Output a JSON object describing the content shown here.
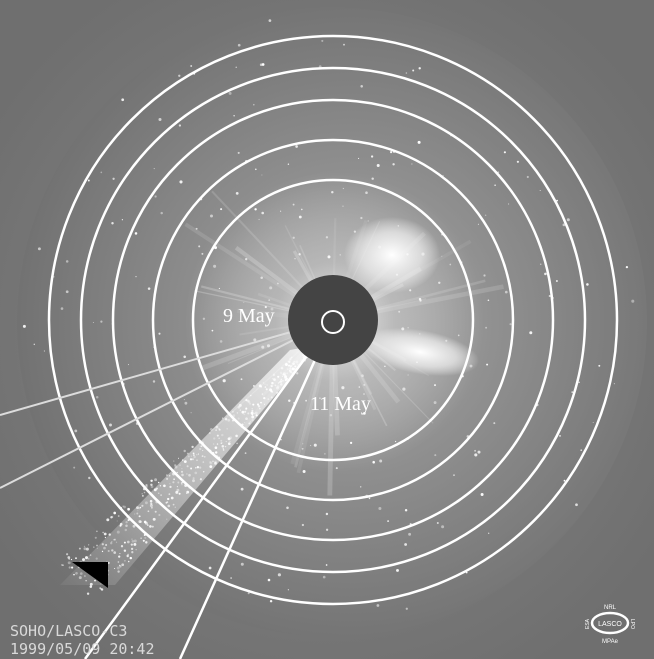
{
  "image": {
    "labels": {
      "date_a": "9 May",
      "date_b": "11 May"
    },
    "caption": {
      "line1": "SOHO/LASCO-C3",
      "line2": "1999/05/09 20:42"
    },
    "logo": {
      "top": "NRL",
      "center": "LASCO",
      "bottom": "MPAe",
      "left": "ESA",
      "right": "LPO"
    },
    "colors": {
      "background": "#777777",
      "rings": "#ffffff",
      "occulter": "#444444"
    }
  }
}
